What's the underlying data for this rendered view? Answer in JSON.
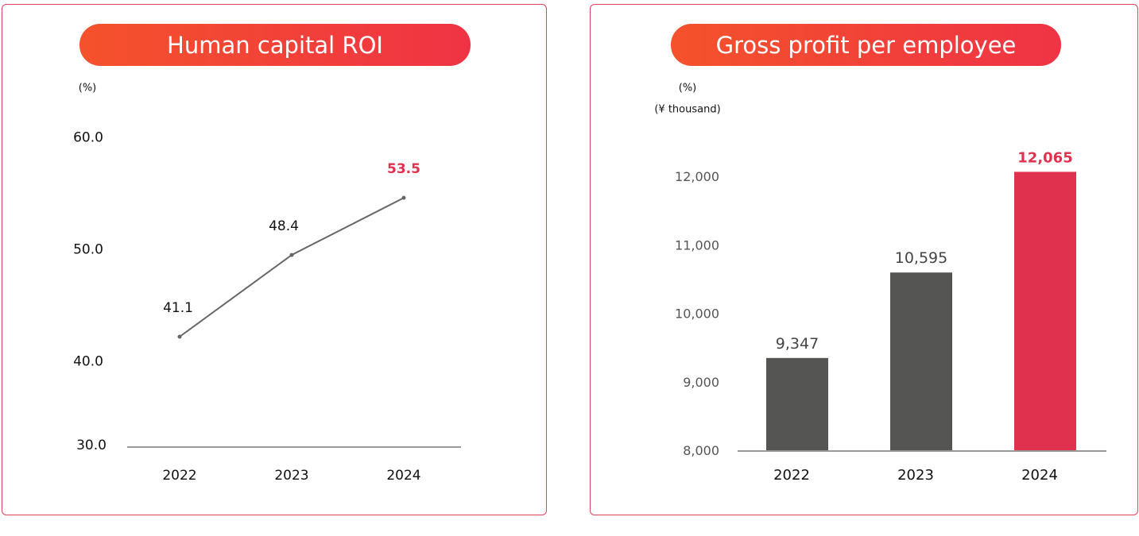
{
  "colors": {
    "accent": "#e0314f",
    "bar": "#555553",
    "line": "#666666"
  },
  "chart_data": [
    {
      "type": "line",
      "title": "Human capital ROI",
      "unit": "(%)",
      "categories": [
        "2022",
        "2023",
        "2024"
      ],
      "values": [
        41.1,
        48.4,
        53.5
      ],
      "value_labels": [
        "41.1",
        "48.4",
        "53.5"
      ],
      "yticks": [
        60,
        50,
        40,
        30
      ],
      "ytick_labels": [
        "60.0",
        "50.0",
        "40.0",
        "30.0"
      ],
      "ylim": [
        30,
        60
      ],
      "highlight_last": true
    },
    {
      "type": "bar",
      "title": "Gross profit per employee",
      "unit": "(%)",
      "unit2": "(¥ thousand)",
      "categories": [
        "2022",
        "2023",
        "2024"
      ],
      "values": [
        9347,
        10595,
        12065
      ],
      "value_labels": [
        "9,347",
        "10,595",
        "12,065"
      ],
      "yticks": [
        12000,
        11000,
        10000,
        9000,
        8000
      ],
      "ytick_labels": [
        "12,000",
        "11,000",
        "10,000",
        "9,000",
        "8,000"
      ],
      "ylim": [
        8000,
        12000
      ],
      "highlight_last": true
    }
  ]
}
